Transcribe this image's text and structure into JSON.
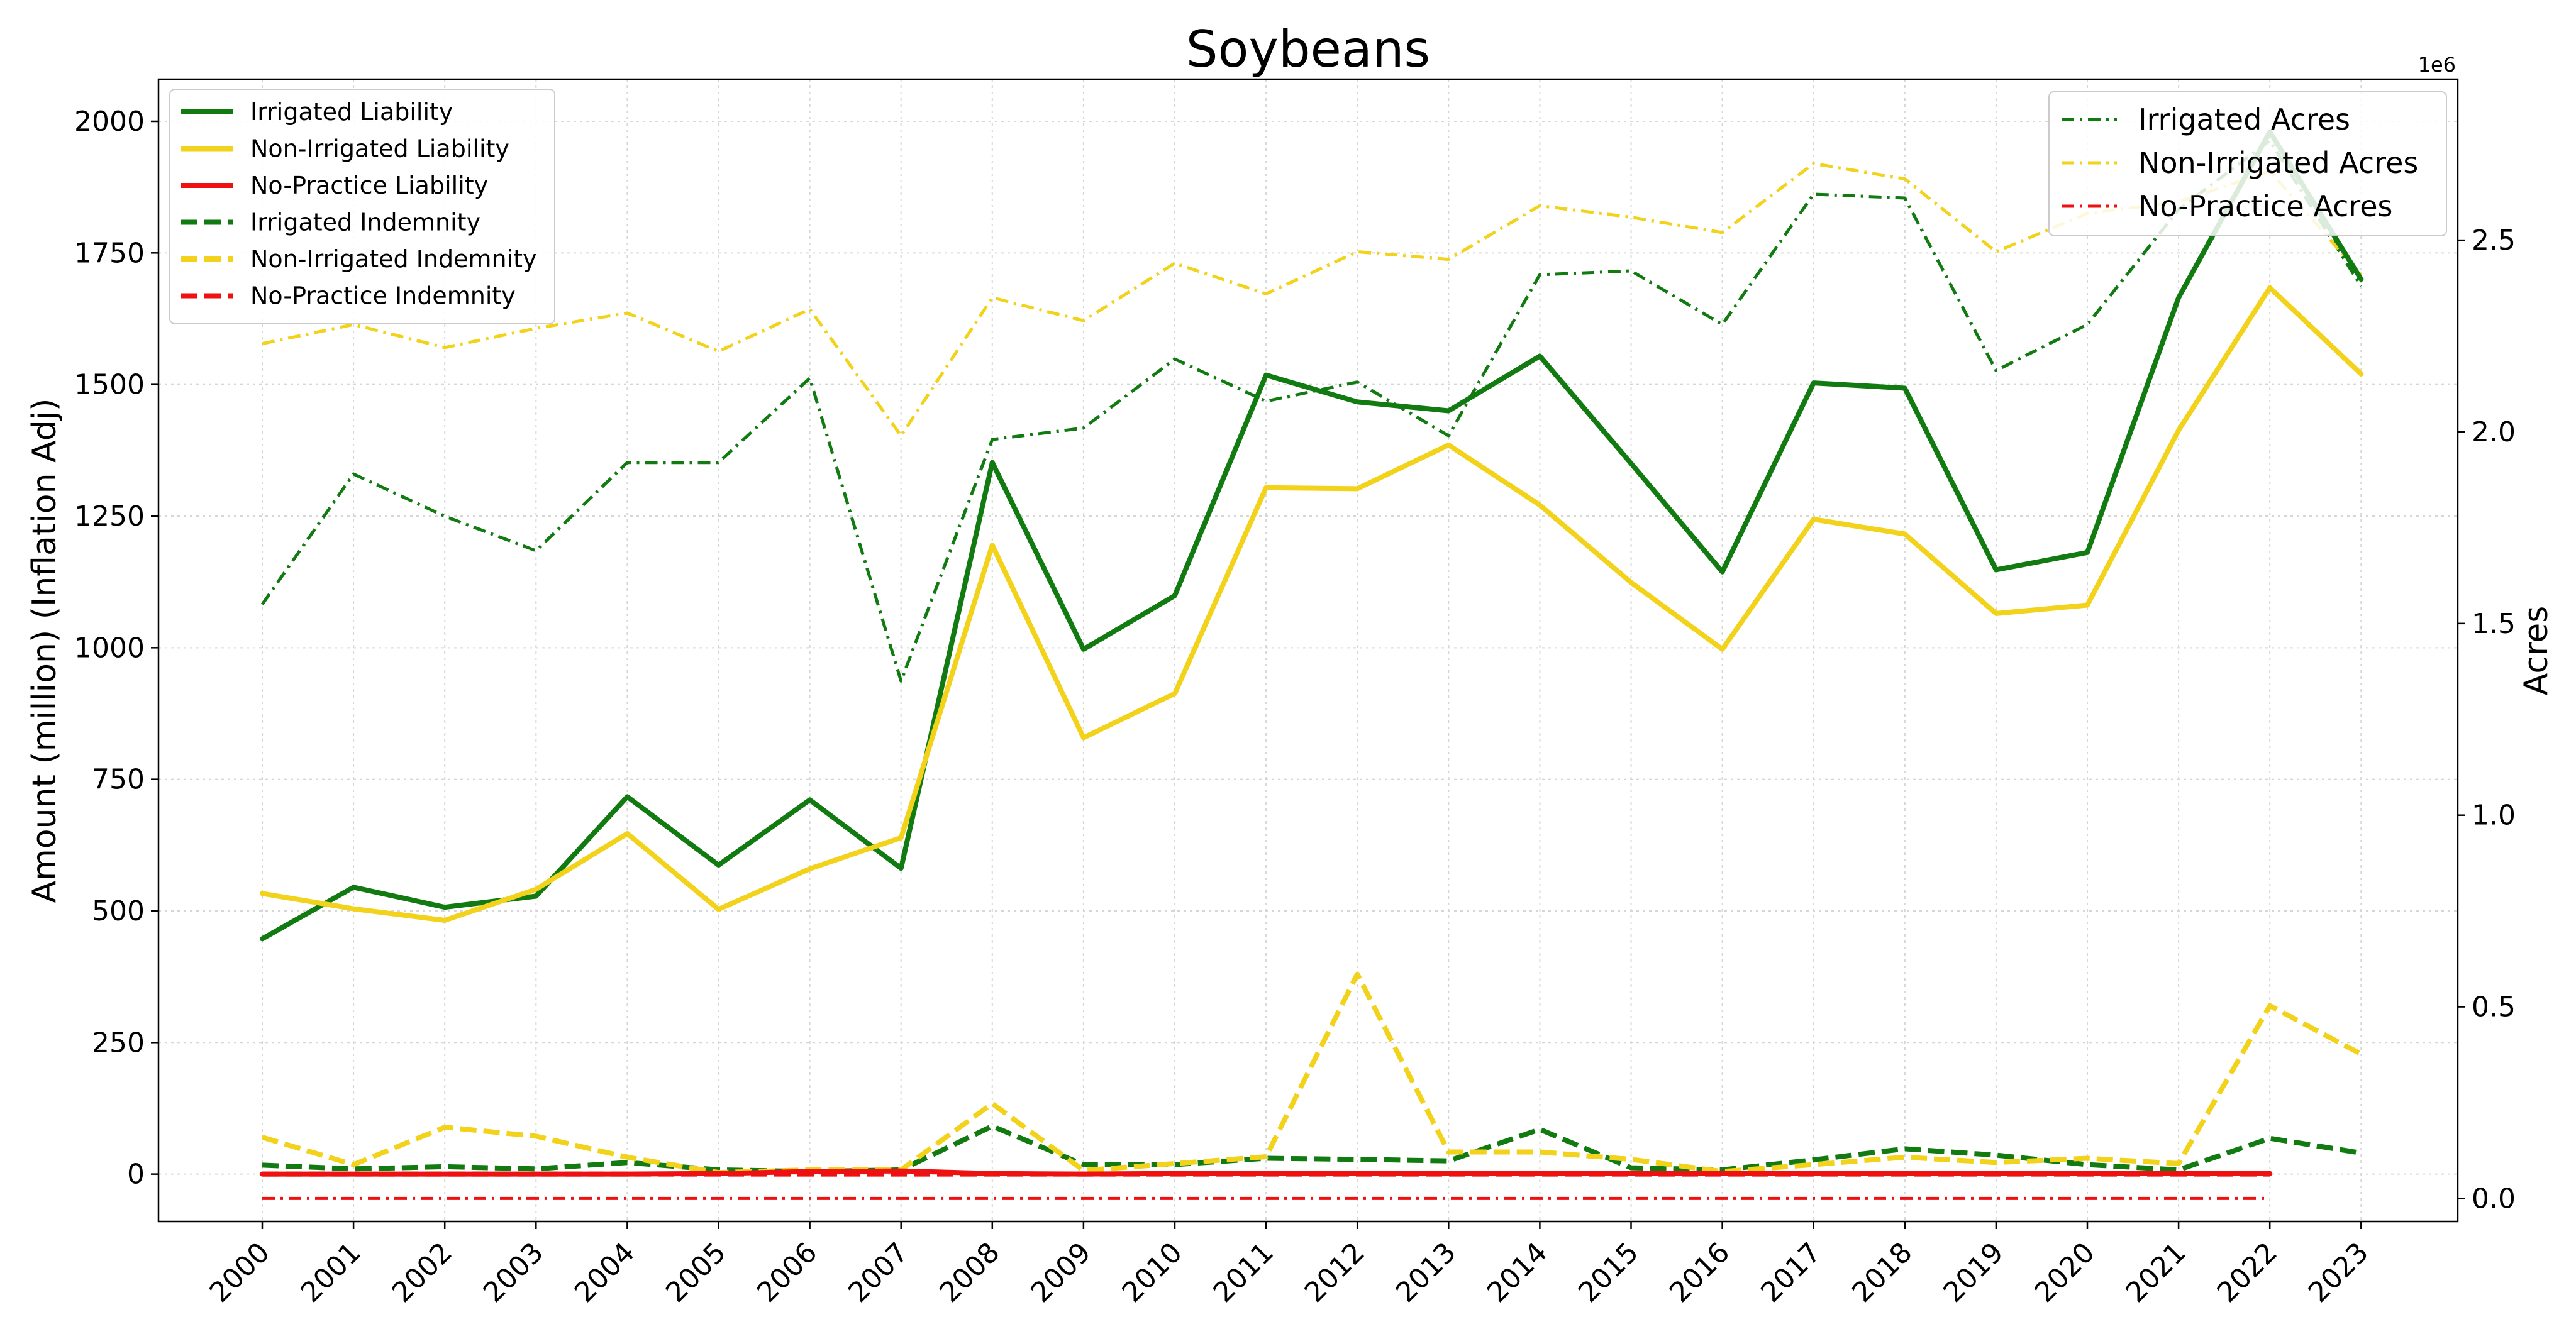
{
  "chart_data": {
    "type": "line",
    "title": "Soybeans",
    "xlabel": "",
    "ylabel": "Amount (million) (Inflation Adj)",
    "y2label": "Acres",
    "y2_offset_text": "1e6",
    "categories": [
      "2000",
      "2001",
      "2002",
      "2003",
      "2004",
      "2005",
      "2006",
      "2007",
      "2008",
      "2009",
      "2010",
      "2011",
      "2012",
      "2013",
      "2014",
      "2015",
      "2016",
      "2017",
      "2018",
      "2019",
      "2020",
      "2021",
      "2022",
      "2023"
    ],
    "ylim": [
      -90,
      2080
    ],
    "y_ticks": [
      0,
      250,
      500,
      750,
      1000,
      1250,
      1500,
      1750,
      2000
    ],
    "y_tick_labels": [
      "0",
      "250",
      "500",
      "750",
      "1000",
      "1250",
      "1500",
      "1750",
      "2000"
    ],
    "y2lim": [
      -0.06,
      2.92
    ],
    "y2_ticks": [
      0.0,
      0.5,
      1.0,
      1.5,
      2.0,
      2.5
    ],
    "y2_tick_labels": [
      "0.0",
      "0.5",
      "1.0",
      "1.5",
      "2.0",
      "2.5"
    ],
    "grid": true,
    "legend_left_placement": "upper-left",
    "legend_right_placement": "upper-right",
    "series": [
      {
        "name": "Irrigated Liability",
        "axis": "left",
        "color": "#117a11",
        "style": "solid",
        "values": [
          447,
          545,
          507,
          528,
          717,
          587,
          711,
          581,
          1352,
          997,
          1099,
          1518,
          1467,
          1450,
          1554,
          1350,
          1144,
          1503,
          1493,
          1148,
          1181,
          1665,
          1980,
          1700
        ]
      },
      {
        "name": "Non-Irrigated Liability",
        "axis": "left",
        "color": "#f2d21a",
        "style": "solid",
        "values": [
          533,
          504,
          482,
          541,
          647,
          503,
          580,
          639,
          1195,
          829,
          913,
          1304,
          1302,
          1385,
          1271,
          1124,
          997,
          1244,
          1216,
          1065,
          1081,
          1413,
          1684,
          1520
        ]
      },
      {
        "name": "No-Practice Liability",
        "axis": "left",
        "color": "#ee1111",
        "style": "solid",
        "values": [
          0,
          0,
          0,
          0,
          0,
          1,
          5,
          6,
          1,
          0,
          1,
          1,
          1,
          1,
          1,
          1,
          1,
          1,
          1,
          1,
          1,
          1,
          1,
          null
        ]
      },
      {
        "name": "Irrigated Indemnity",
        "axis": "left",
        "color": "#117a11",
        "style": "dashed",
        "values": [
          17,
          10,
          14,
          10,
          22,
          8,
          5,
          8,
          91,
          18,
          18,
          30,
          28,
          25,
          85,
          12,
          8,
          27,
          48,
          36,
          18,
          8,
          68,
          40
        ]
      },
      {
        "name": "Non-Irrigated Indemnity",
        "axis": "left",
        "color": "#f2d21a",
        "style": "dashed",
        "values": [
          70,
          18,
          89,
          72,
          32,
          3,
          8,
          8,
          134,
          7,
          20,
          33,
          380,
          42,
          42,
          28,
          5,
          18,
          32,
          22,
          30,
          20,
          320,
          228
        ]
      },
      {
        "name": "No-Practice Indemnity",
        "axis": "left",
        "color": "#ee1111",
        "style": "dashed",
        "values": [
          0,
          0,
          0,
          0,
          0,
          0,
          0,
          0,
          0,
          0,
          0,
          0,
          0,
          0,
          0,
          0,
          0,
          0,
          0,
          0,
          0,
          0,
          0,
          null
        ]
      },
      {
        "name": "Irrigated Acres",
        "axis": "right",
        "color": "#117a11",
        "style": "dashdot",
        "values": [
          1.55,
          1.89,
          1.78,
          1.69,
          1.92,
          1.92,
          2.14,
          1.35,
          1.98,
          2.01,
          2.19,
          2.08,
          2.13,
          1.99,
          2.41,
          2.42,
          2.28,
          2.62,
          2.61,
          2.16,
          2.28,
          2.58,
          2.76,
          2.38
        ]
      },
      {
        "name": "Non-Irrigated Acres",
        "axis": "right",
        "color": "#f2d21a",
        "style": "dashdot",
        "values": [
          2.23,
          2.28,
          2.22,
          2.27,
          2.31,
          2.21,
          2.32,
          1.99,
          2.35,
          2.29,
          2.44,
          2.36,
          2.47,
          2.45,
          2.59,
          2.56,
          2.52,
          2.7,
          2.66,
          2.47,
          2.57,
          2.6,
          2.68,
          2.41
        ]
      },
      {
        "name": "No-Practice Acres",
        "axis": "right",
        "color": "#ee1111",
        "style": "dashdot",
        "values": [
          0,
          0,
          0,
          0,
          0,
          0,
          0,
          0,
          0,
          0,
          0,
          0,
          0,
          0,
          0,
          0,
          0,
          0,
          0,
          0,
          0,
          0,
          0,
          null
        ]
      }
    ],
    "legend_left": [
      "Irrigated Liability",
      "Non-Irrigated Liability",
      "No-Practice Liability",
      "Irrigated Indemnity",
      "Non-Irrigated Indemnity",
      "No-Practice Indemnity"
    ],
    "legend_right": [
      "Irrigated Acres",
      "Non-Irrigated Acres",
      "No-Practice Acres"
    ]
  }
}
